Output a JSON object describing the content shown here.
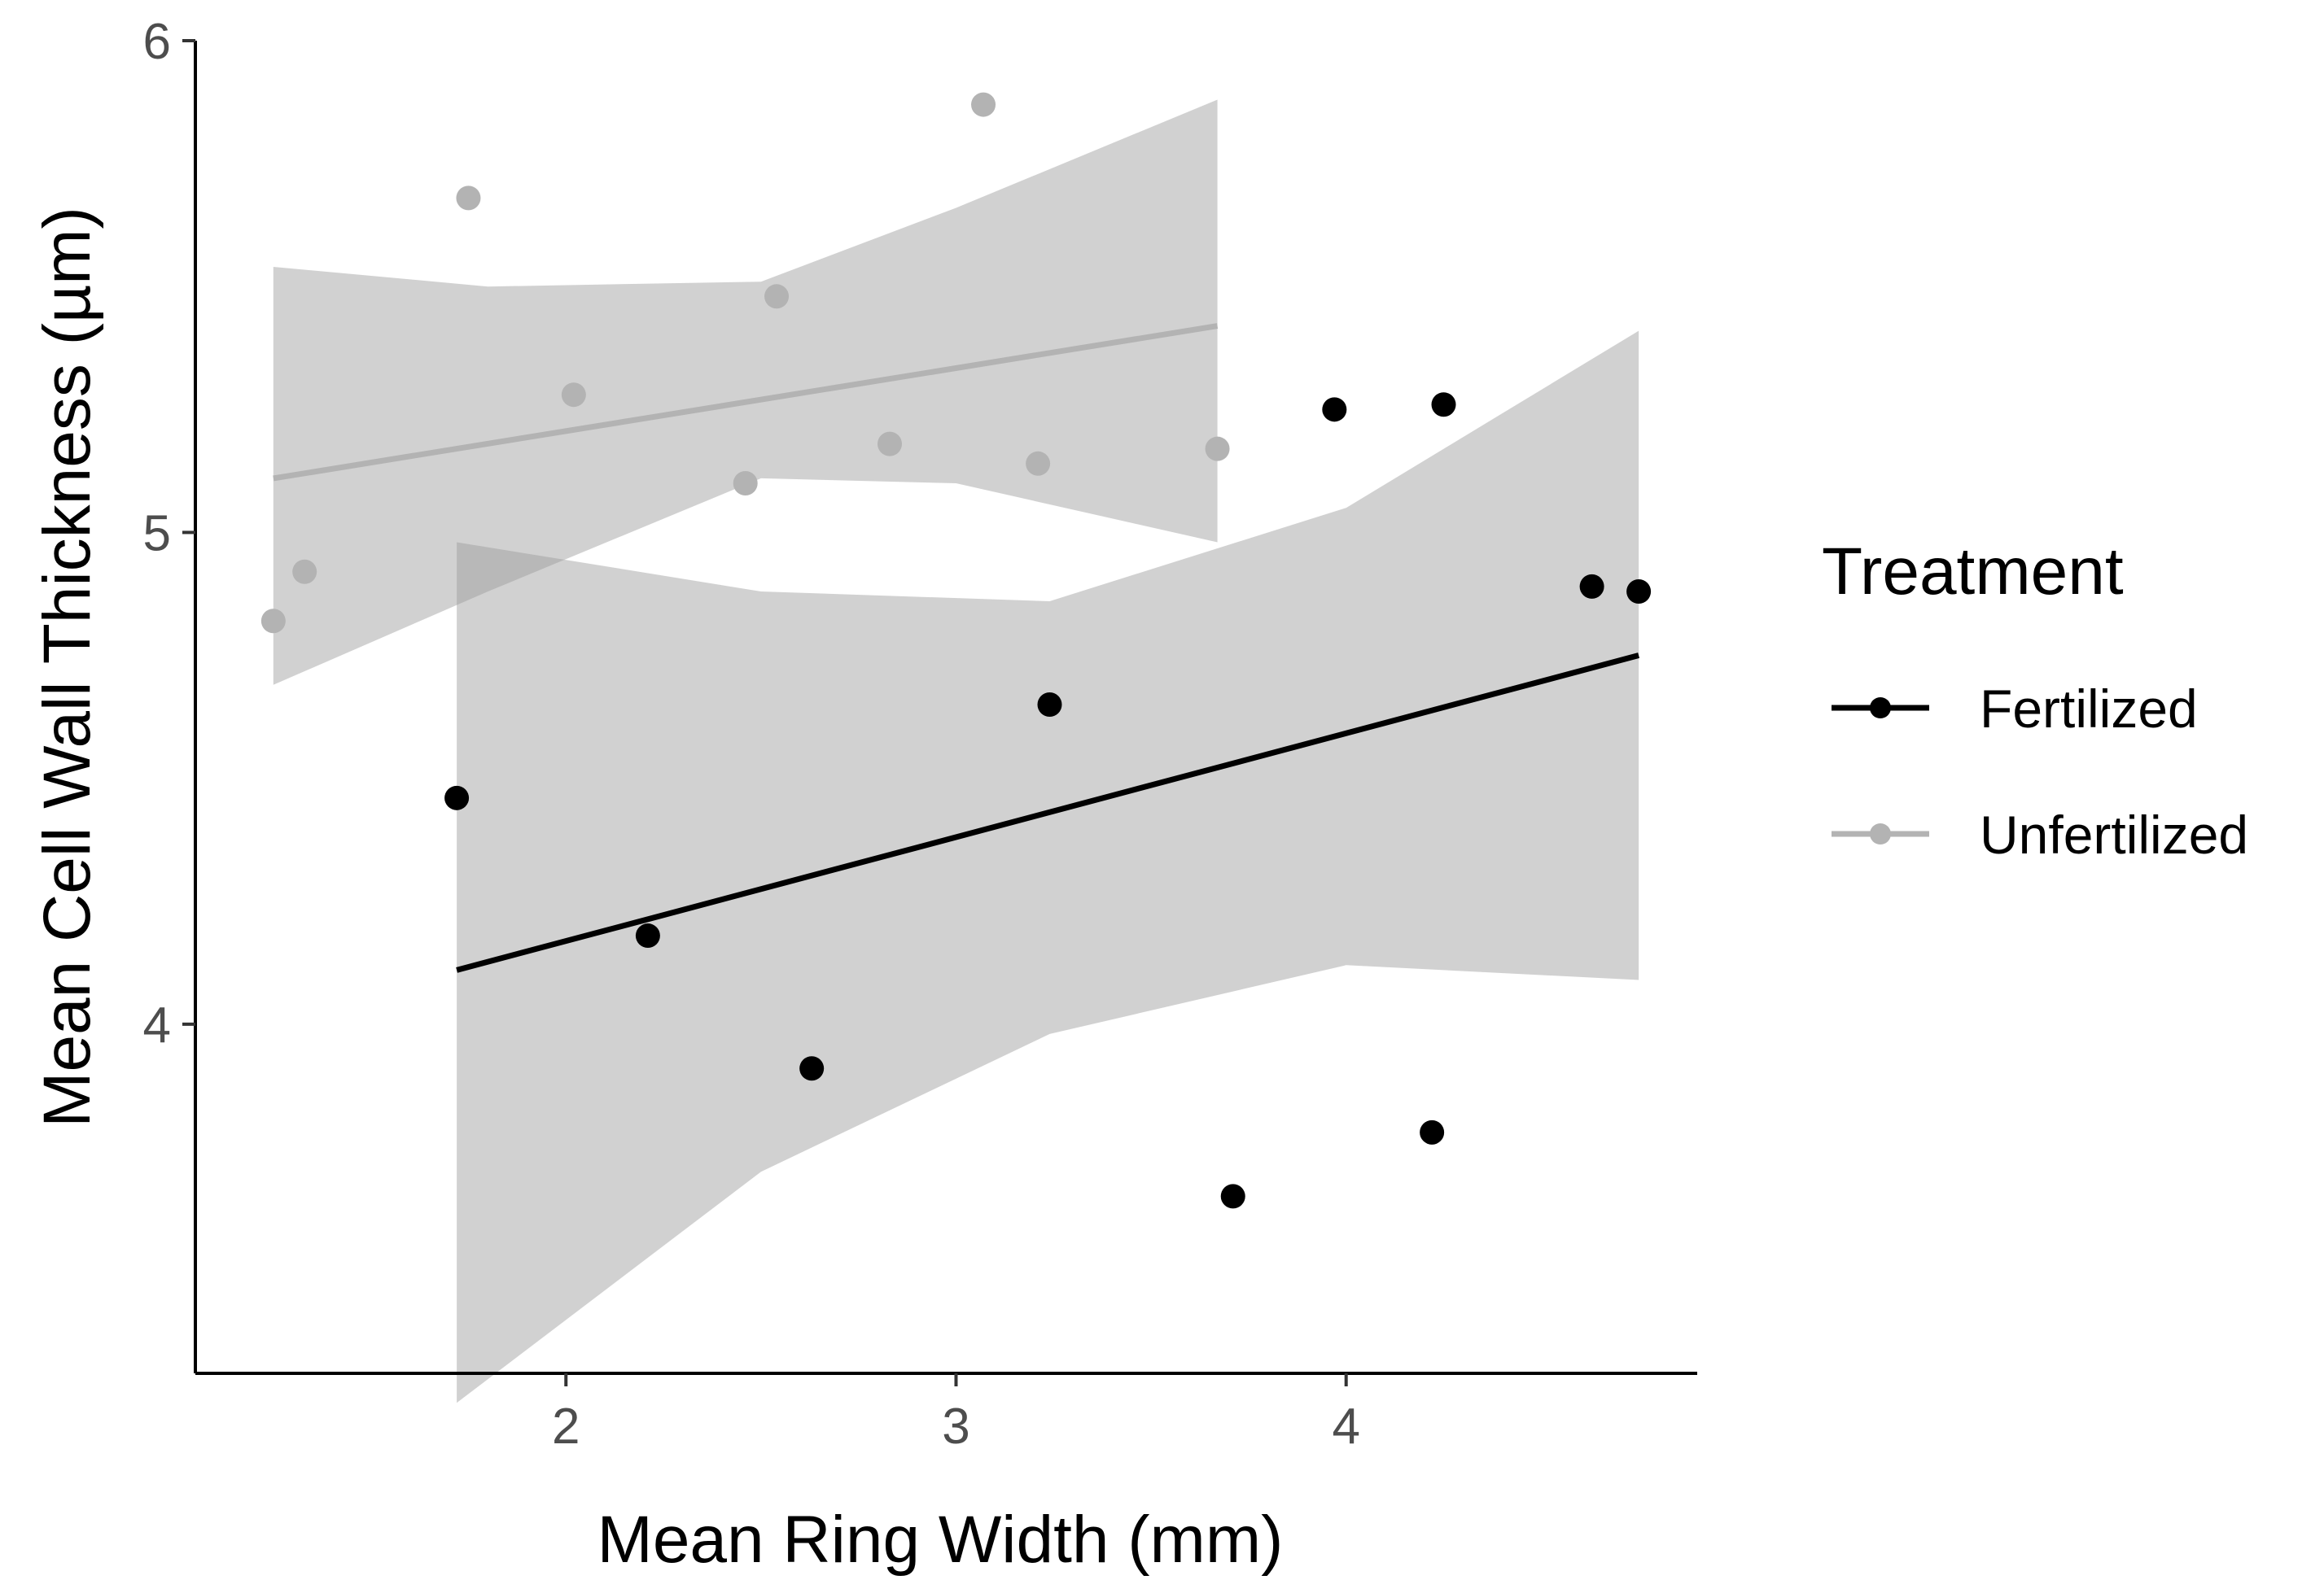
{
  "chart_data": {
    "type": "scatter",
    "title": "",
    "xlabel": "Mean Ring Width (mm)",
    "ylabel": "Mean Cell Wall Thickness (µm)",
    "xlim": [
      1.05,
      4.9
    ],
    "ylim": [
      3.29,
      6.0
    ],
    "xticks": [
      2,
      3,
      4
    ],
    "yticks": [
      4,
      5,
      6
    ],
    "grid": false,
    "legend": {
      "title": "Treatment",
      "position": "right"
    },
    "series": [
      {
        "name": "Fertilized",
        "color": "#000000",
        "points": [
          {
            "x": 1.72,
            "y": 4.46
          },
          {
            "x": 2.21,
            "y": 4.18
          },
          {
            "x": 2.63,
            "y": 3.91
          },
          {
            "x": 3.24,
            "y": 4.65
          },
          {
            "x": 3.71,
            "y": 3.65
          },
          {
            "x": 3.97,
            "y": 5.25
          },
          {
            "x": 4.22,
            "y": 3.78
          },
          {
            "x": 4.25,
            "y": 5.26
          },
          {
            "x": 4.63,
            "y": 4.89
          },
          {
            "x": 4.75,
            "y": 4.88
          }
        ],
        "fit": {
          "x": [
            1.72,
            4.75
          ],
          "y": [
            4.11,
            4.75
          ]
        },
        "ci": {
          "x": [
            1.72,
            2.5,
            3.24,
            4.0,
            4.75
          ],
          "lower": [
            3.23,
            3.7,
            3.98,
            4.12,
            4.09
          ],
          "upper": [
            4.98,
            4.88,
            4.86,
            5.05,
            5.41
          ]
        }
      },
      {
        "name": "Unfertilized",
        "color": "#b3b3b3",
        "points": [
          {
            "x": 1.25,
            "y": 4.82
          },
          {
            "x": 1.33,
            "y": 4.92
          },
          {
            "x": 1.75,
            "y": 5.68
          },
          {
            "x": 2.02,
            "y": 5.28
          },
          {
            "x": 2.46,
            "y": 5.1
          },
          {
            "x": 2.54,
            "y": 5.48
          },
          {
            "x": 2.83,
            "y": 5.18
          },
          {
            "x": 3.07,
            "y": 5.87
          },
          {
            "x": 3.21,
            "y": 5.14
          },
          {
            "x": 3.67,
            "y": 5.17
          }
        ],
        "fit": {
          "x": [
            1.25,
            3.67
          ],
          "y": [
            5.11,
            5.42
          ]
        },
        "ci": {
          "x": [
            1.25,
            1.8,
            2.5,
            3.0,
            3.67
          ],
          "lower": [
            4.69,
            4.88,
            5.11,
            5.1,
            4.98
          ],
          "upper": [
            5.54,
            5.5,
            5.51,
            5.66,
            5.88
          ]
        }
      }
    ]
  }
}
